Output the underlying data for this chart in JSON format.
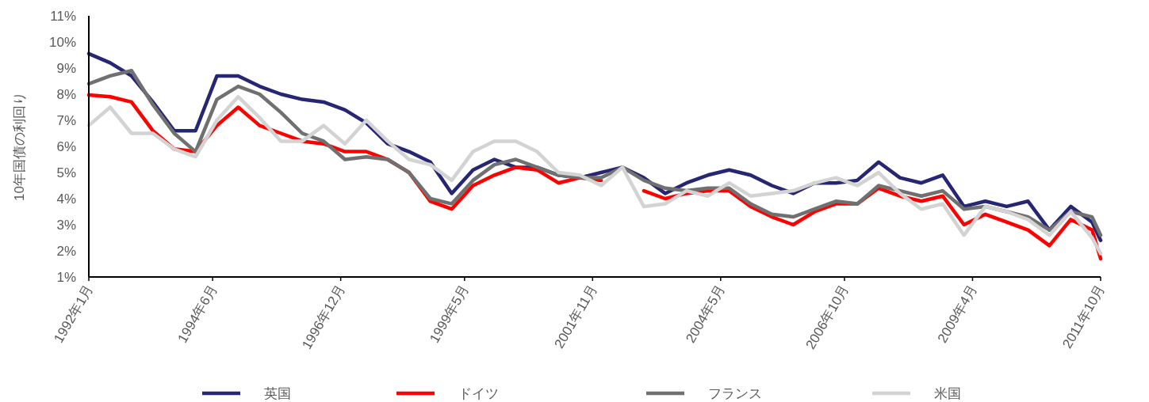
{
  "chart_data": {
    "type": "line",
    "ylabel": "10年国債の利回り",
    "legend": "bottom",
    "grid": false,
    "marker": "none",
    "line_style": "solid",
    "x": [
      "1992-01",
      "1992-06",
      "1992-11",
      "1993-04",
      "1993-09",
      "1994-02",
      "1994-07",
      "1994-12",
      "1995-05",
      "1995-10",
      "1996-03",
      "1996-08",
      "1997-01",
      "1997-06",
      "1997-11",
      "1998-04",
      "1998-09",
      "1999-02",
      "1999-07",
      "1999-12",
      "2000-05",
      "2000-10",
      "2001-03",
      "2001-08",
      "2002-01",
      "2002-06",
      "2002-11",
      "2003-04",
      "2003-09",
      "2004-02",
      "2004-07",
      "2004-12",
      "2005-05",
      "2005-10",
      "2006-03",
      "2006-08",
      "2007-01",
      "2007-06",
      "2007-11",
      "2008-04",
      "2008-09",
      "2009-02",
      "2009-07",
      "2009-12",
      "2010-05",
      "2010-10",
      "2011-03",
      "2011-08",
      "2011-10"
    ],
    "xlim": [
      "1992-01",
      "2011-10"
    ],
    "xticks": [
      {
        "value": "1992-01",
        "label": "1992年1月"
      },
      {
        "value": "1994-06",
        "label": "1994年6月"
      },
      {
        "value": "1996-12",
        "label": "1996年12月"
      },
      {
        "value": "1999-05",
        "label": "1999年5月"
      },
      {
        "value": "2001-11",
        "label": "2001年11月"
      },
      {
        "value": "2004-05",
        "label": "2004年5月"
      },
      {
        "value": "2006-10",
        "label": "2006年10月"
      },
      {
        "value": "2009-04",
        "label": "2009年4月"
      },
      {
        "value": "2011-10",
        "label": "2011年10月"
      }
    ],
    "ylim": [
      1,
      11
    ],
    "yticks": [
      {
        "value": 1,
        "label": "1%"
      },
      {
        "value": 2,
        "label": "2%"
      },
      {
        "value": 3,
        "label": "3%"
      },
      {
        "value": 4,
        "label": "4%"
      },
      {
        "value": 5,
        "label": "5%"
      },
      {
        "value": 6,
        "label": "6%"
      },
      {
        "value": 7,
        "label": "7%"
      },
      {
        "value": 8,
        "label": "8%"
      },
      {
        "value": 9,
        "label": "9%"
      },
      {
        "value": 10,
        "label": "10%"
      },
      {
        "value": 11,
        "label": "11%"
      }
    ],
    "series": [
      {
        "name": "英国",
        "color": "#262673",
        "values": [
          9.55,
          9.2,
          8.7,
          7.7,
          6.6,
          6.6,
          8.7,
          8.7,
          8.3,
          8.0,
          7.8,
          7.7,
          7.4,
          6.9,
          6.1,
          5.8,
          5.4,
          4.2,
          5.1,
          5.5,
          5.2,
          5.2,
          4.9,
          4.8,
          5.0,
          5.2,
          4.8,
          4.2,
          4.6,
          4.9,
          5.1,
          4.9,
          4.5,
          4.2,
          4.6,
          4.6,
          4.7,
          5.4,
          4.8,
          4.6,
          4.9,
          3.7,
          3.9,
          3.7,
          3.9,
          2.8,
          3.7,
          3.1,
          2.4
        ]
      },
      {
        "name": "ドイツ",
        "color": "#ff0000",
        "values": [
          7.97,
          7.9,
          7.7,
          6.6,
          5.9,
          5.8,
          6.8,
          7.5,
          6.8,
          6.5,
          6.2,
          6.1,
          5.8,
          5.8,
          5.5,
          5.0,
          3.9,
          3.6,
          4.5,
          4.9,
          5.2,
          5.1,
          4.6,
          4.8,
          4.7,
          null,
          4.3,
          4.0,
          4.2,
          4.3,
          4.3,
          3.7,
          3.3,
          3.0,
          3.5,
          3.8,
          3.8,
          4.4,
          4.1,
          3.9,
          4.1,
          3.0,
          3.4,
          3.1,
          2.8,
          2.2,
          3.2,
          2.8,
          1.7
        ]
      },
      {
        "name": "フランス",
        "color": "#707070",
        "values": [
          8.4,
          8.7,
          8.9,
          7.6,
          6.5,
          5.8,
          7.8,
          8.3,
          8.0,
          7.3,
          6.5,
          6.2,
          5.5,
          5.6,
          5.5,
          5.0,
          4.0,
          3.8,
          4.7,
          5.3,
          5.5,
          5.2,
          4.9,
          4.8,
          4.8,
          5.2,
          4.7,
          4.4,
          4.3,
          4.4,
          4.4,
          3.8,
          3.4,
          3.3,
          3.6,
          3.9,
          3.8,
          4.5,
          4.3,
          4.1,
          4.3,
          3.6,
          3.7,
          3.5,
          3.3,
          2.8,
          3.5,
          3.3,
          2.6
        ]
      },
      {
        "name": "米国",
        "color": "#d3d3d3",
        "values": [
          6.8,
          7.5,
          6.5,
          6.5,
          5.9,
          5.6,
          7.0,
          7.9,
          7.1,
          6.2,
          6.2,
          6.8,
          6.1,
          7.0,
          6.2,
          5.5,
          5.3,
          4.7,
          5.8,
          6.2,
          6.2,
          5.8,
          5.0,
          4.9,
          4.5,
          5.2,
          3.7,
          3.8,
          4.3,
          4.1,
          4.6,
          4.1,
          4.2,
          4.3,
          4.6,
          4.8,
          4.5,
          5.0,
          4.2,
          3.6,
          3.8,
          2.6,
          3.7,
          3.5,
          3.2,
          2.6,
          3.5,
          2.5,
          1.9
        ]
      }
    ]
  }
}
